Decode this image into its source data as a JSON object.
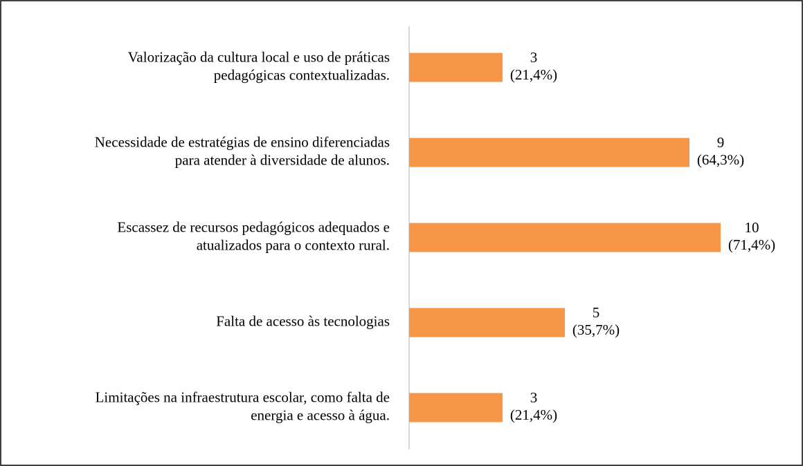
{
  "chart_data": {
    "type": "barh",
    "categories": [
      "Valorização da cultura local e uso de práticas\npedagógicas contextualizadas.",
      "Necessidade de estratégias de ensino diferenciadas\npara atender à diversidade de alunos.",
      "Escassez de recursos pedagógicos adequados e\natualizados para o contexto rural.",
      "Falta de acesso às tecnologias",
      "Limitações na infraestrutura escolar, como falta de\nenergia e acesso à água."
    ],
    "values": [
      3,
      9,
      10,
      5,
      3
    ],
    "value_labels": [
      "3\n(21,4%)",
      "9\n(64,3%)",
      "10\n(71,4%)",
      "5\n(35,7%)",
      "3\n(21,4%)"
    ],
    "color": "#f79646"
  }
}
